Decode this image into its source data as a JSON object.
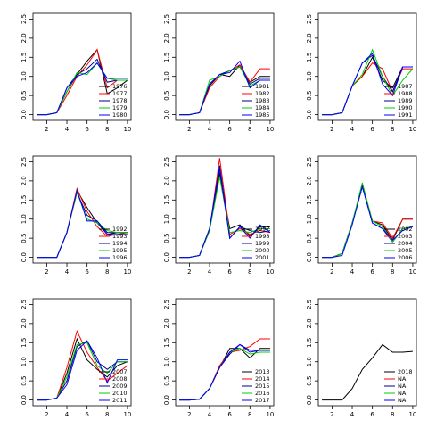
{
  "chart_data": [
    {
      "type": "line",
      "x": [
        1,
        2,
        3,
        4,
        5,
        6,
        7,
        8,
        9,
        10
      ],
      "xlim": [
        0.64,
        10.36
      ],
      "xticks": [
        2,
        4,
        6,
        8,
        10
      ],
      "ylim": [
        -0.15,
        2.65
      ],
      "yticks": [
        {
          "value": 0,
          "label": "0.0"
        },
        0.5,
        {
          "value": 1,
          "label": "1.0"
        },
        1.5,
        {
          "value": 2,
          "label": "2.0"
        },
        2.5
      ],
      "legend": "bottomright",
      "series": [
        {
          "name": "1976",
          "color": "#000000",
          "values": [
            0,
            0,
            0.05,
            0.6,
            1.05,
            1.4,
            1.7,
            0.55,
            0.7,
            0.9
          ]
        },
        {
          "name": "1977",
          "color": "#ff0000",
          "values": [
            0,
            0,
            0.05,
            0.5,
            1.0,
            1.3,
            1.7,
            0.7,
            0.9,
            0.9
          ]
        },
        {
          "name": "1978",
          "color": "#000080",
          "values": [
            0,
            0,
            0.05,
            0.7,
            1.05,
            1.2,
            1.45,
            0.85,
            0.9,
            0.9
          ]
        },
        {
          "name": "1979",
          "color": "#00cc00",
          "values": [
            0,
            0,
            0.05,
            0.6,
            1.1,
            1.05,
            1.35,
            0.95,
            0.9,
            0.9
          ]
        },
        {
          "name": "1980",
          "color": "#0000ff",
          "values": [
            0,
            0,
            0.05,
            0.7,
            1.0,
            1.1,
            1.35,
            0.95,
            0.95,
            0.95
          ]
        }
      ]
    },
    {
      "type": "line",
      "x": [
        1,
        2,
        3,
        4,
        5,
        6,
        7,
        8,
        9,
        10
      ],
      "xlim": [
        0.64,
        10.36
      ],
      "xticks": [
        2,
        4,
        6,
        8,
        10
      ],
      "ylim": [
        -0.15,
        2.65
      ],
      "yticks": [
        {
          "value": 0,
          "label": "0.0"
        },
        0.5,
        {
          "value": 1,
          "label": "1.0"
        },
        1.5,
        {
          "value": 2,
          "label": "2.0"
        },
        2.5
      ],
      "legend": "bottomright",
      "series": [
        {
          "name": "1981",
          "color": "#000000",
          "values": [
            0,
            0,
            0.05,
            0.75,
            1.05,
            1.0,
            1.3,
            0.85,
            1.0,
            1.0
          ]
        },
        {
          "name": "1982",
          "color": "#ff0000",
          "values": [
            0,
            0,
            0.05,
            0.7,
            1.0,
            1.15,
            1.3,
            0.85,
            1.2,
            1.2
          ]
        },
        {
          "name": "1983",
          "color": "#000080",
          "values": [
            0,
            0,
            0.05,
            0.8,
            1.05,
            1.15,
            1.25,
            0.8,
            0.95,
            0.95
          ]
        },
        {
          "name": "1984",
          "color": "#00cc00",
          "values": [
            0,
            0,
            0.05,
            0.9,
            1.0,
            1.15,
            1.25,
            0.75,
            0.9,
            0.9
          ]
        },
        {
          "name": "1985",
          "color": "#0000ff",
          "values": [
            0,
            0,
            0.05,
            0.8,
            1.05,
            1.1,
            1.4,
            0.7,
            0.9,
            0.9
          ]
        }
      ]
    },
    {
      "type": "line",
      "x": [
        1,
        2,
        3,
        4,
        5,
        6,
        7,
        8,
        9,
        10
      ],
      "xlim": [
        0.64,
        10.36
      ],
      "xticks": [
        2,
        4,
        6,
        8,
        10
      ],
      "ylim": [
        -0.15,
        2.65
      ],
      "yticks": [
        {
          "value": 0,
          "label": "0.0"
        },
        0.5,
        {
          "value": 1,
          "label": "1.0"
        },
        1.5,
        {
          "value": 2,
          "label": "2.0"
        },
        2.5
      ],
      "legend": "bottomright",
      "series": [
        {
          "name": "1987",
          "color": "#000000",
          "values": [
            0,
            0,
            0.05,
            0.75,
            1.0,
            1.5,
            0.9,
            0.7,
            1.25,
            1.25
          ]
        },
        {
          "name": "1988",
          "color": "#ff0000",
          "values": [
            0,
            0,
            0.05,
            0.75,
            1.0,
            1.35,
            1.2,
            0.6,
            1.2,
            1.2
          ]
        },
        {
          "name": "1989",
          "color": "#000080",
          "values": [
            0,
            0,
            0.05,
            0.75,
            1.35,
            1.55,
            1.0,
            0.6,
            1.25,
            1.25
          ]
        },
        {
          "name": "1990",
          "color": "#00cc00",
          "values": [
            0,
            0,
            0.05,
            0.75,
            1.05,
            1.7,
            1.0,
            0.5,
            0.9,
            1.2
          ]
        },
        {
          "name": "1991",
          "color": "#0000ff",
          "values": [
            0,
            0,
            0.05,
            0.75,
            1.35,
            1.6,
            0.8,
            0.5,
            1.25,
            1.25
          ]
        }
      ]
    },
    {
      "type": "line",
      "x": [
        1,
        2,
        3,
        4,
        5,
        6,
        7,
        8,
        9,
        10
      ],
      "xlim": [
        0.64,
        10.36
      ],
      "xticks": [
        2,
        4,
        6,
        8,
        10
      ],
      "ylim": [
        -0.15,
        2.65
      ],
      "yticks": [
        {
          "value": 0,
          "label": "0.0"
        },
        0.5,
        {
          "value": 1,
          "label": "1.0"
        },
        1.5,
        {
          "value": 2,
          "label": "2.0"
        },
        2.5
      ],
      "legend": "bottomright",
      "series": [
        {
          "name": "1992",
          "color": "#000000",
          "values": [
            0,
            0,
            0,
            0.65,
            1.75,
            1.3,
            0.9,
            0.6,
            0.65,
            0.65
          ]
        },
        {
          "name": "1993",
          "color": "#ff0000",
          "values": [
            0,
            0,
            0,
            0.65,
            1.8,
            1.2,
            0.8,
            0.55,
            0.6,
            0.65
          ]
        },
        {
          "name": "1994",
          "color": "#000080",
          "values": [
            0,
            0,
            0,
            0.65,
            1.7,
            1.1,
            0.95,
            0.65,
            0.65,
            0.65
          ]
        },
        {
          "name": "1995",
          "color": "#00cc00",
          "values": [
            0,
            0,
            0,
            0.65,
            1.7,
            1.0,
            0.9,
            0.7,
            0.65,
            0.65
          ]
        },
        {
          "name": "1996",
          "color": "#0000ff",
          "values": [
            0,
            0,
            0,
            0.65,
            1.75,
            0.95,
            0.95,
            0.6,
            0.6,
            0.6
          ]
        }
      ]
    },
    {
      "type": "line",
      "x": [
        1,
        2,
        3,
        4,
        5,
        6,
        7,
        8,
        9,
        10
      ],
      "xlim": [
        0.64,
        10.36
      ],
      "xticks": [
        2,
        4,
        6,
        8,
        10
      ],
      "ylim": [
        -0.15,
        2.65
      ],
      "yticks": [
        {
          "value": 0,
          "label": "0.0"
        },
        0.5,
        {
          "value": 1,
          "label": "1.0"
        },
        1.5,
        {
          "value": 2,
          "label": "2.0"
        },
        2.5
      ],
      "legend": "bottomright",
      "series": [
        {
          "name": "1997",
          "color": "#000000",
          "values": [
            0,
            0,
            0.05,
            0.75,
            2.2,
            0.75,
            0.85,
            0.55,
            0.8,
            0.8
          ]
        },
        {
          "name": "1998",
          "color": "#ff0000",
          "values": [
            0,
            0,
            0.05,
            0.7,
            2.6,
            0.6,
            0.75,
            0.6,
            0.7,
            0.65
          ]
        },
        {
          "name": "1999",
          "color": "#000080",
          "values": [
            0,
            0,
            0.05,
            0.75,
            2.4,
            0.5,
            0.8,
            0.7,
            0.65,
            0.7
          ]
        },
        {
          "name": "2000",
          "color": "#00cc00",
          "values": [
            0,
            0,
            0.05,
            0.7,
            2.1,
            0.65,
            0.7,
            0.65,
            0.75,
            0.75
          ]
        },
        {
          "name": "2001",
          "color": "#0000ff",
          "values": [
            0,
            0,
            0.05,
            0.75,
            2.3,
            0.5,
            0.8,
            0.5,
            0.85,
            0.65
          ]
        }
      ]
    },
    {
      "type": "line",
      "x": [
        1,
        2,
        3,
        4,
        5,
        6,
        7,
        8,
        9,
        10
      ],
      "xlim": [
        0.64,
        10.36
      ],
      "xticks": [
        2,
        4,
        6,
        8,
        10
      ],
      "ylim": [
        -0.15,
        2.65
      ],
      "yticks": [
        {
          "value": 0,
          "label": "0.0"
        },
        0.5,
        {
          "value": 1,
          "label": "1.0"
        },
        1.5,
        {
          "value": 2,
          "label": "2.0"
        },
        2.5
      ],
      "legend": "bottomright",
      "series": [
        {
          "name": "2002",
          "color": "#000000",
          "values": [
            0,
            0,
            0.1,
            0.9,
            1.85,
            0.95,
            0.85,
            0.45,
            1.0,
            1.0
          ]
        },
        {
          "name": "2003",
          "color": "#ff0000",
          "values": [
            0,
            0,
            0.1,
            0.9,
            1.9,
            0.95,
            0.9,
            0.5,
            1.0,
            1.0
          ]
        },
        {
          "name": "2004",
          "color": "#000080",
          "values": [
            0,
            0,
            0.1,
            0.9,
            1.85,
            0.9,
            0.75,
            0.4,
            0.75,
            0.8
          ]
        },
        {
          "name": "2005",
          "color": "#00cc00",
          "values": [
            0,
            0,
            0.1,
            0.9,
            1.95,
            0.95,
            0.8,
            0.4,
            0.75,
            0.8
          ]
        },
        {
          "name": "2006",
          "color": "#0000ff",
          "values": [
            0,
            0,
            0.05,
            0.85,
            1.85,
            0.9,
            0.75,
            0.45,
            0.7,
            0.8
          ]
        }
      ]
    },
    {
      "type": "line",
      "x": [
        1,
        2,
        3,
        4,
        5,
        6,
        7,
        8,
        9,
        10
      ],
      "xlim": [
        0.64,
        10.36
      ],
      "xticks": [
        2,
        4,
        6,
        8,
        10
      ],
      "ylim": [
        -0.15,
        2.65
      ],
      "yticks": [
        {
          "value": 0,
          "label": "0.0"
        },
        0.5,
        {
          "value": 1,
          "label": "1.0"
        },
        1.5,
        {
          "value": 2,
          "label": "2.0"
        },
        2.5
      ],
      "legend": "bottomright",
      "series": [
        {
          "name": "2007",
          "color": "#000000",
          "values": [
            0,
            0,
            0.05,
            0.7,
            1.6,
            1.05,
            0.8,
            0.6,
            0.9,
            1.0
          ]
        },
        {
          "name": "2008",
          "color": "#ff0000",
          "values": [
            0,
            0,
            0.05,
            0.85,
            1.8,
            1.25,
            0.85,
            0.5,
            0.7,
            0.9
          ]
        },
        {
          "name": "2009",
          "color": "#000080",
          "values": [
            0,
            0,
            0.05,
            0.5,
            1.4,
            1.55,
            1.0,
            0.8,
            1.0,
            1.0
          ]
        },
        {
          "name": "2010",
          "color": "#00cc00",
          "values": [
            0,
            0,
            0.05,
            0.6,
            1.45,
            1.5,
            0.9,
            0.7,
            1.0,
            1.0
          ]
        },
        {
          "name": "2011",
          "color": "#0000ff",
          "values": [
            0,
            0,
            0.05,
            0.4,
            1.3,
            1.55,
            1.1,
            0.45,
            1.05,
            1.05
          ]
        }
      ]
    },
    {
      "type": "line",
      "x": [
        1,
        2,
        3,
        4,
        5,
        6,
        7,
        8,
        9,
        10
      ],
      "xlim": [
        0.64,
        10.36
      ],
      "xticks": [
        2,
        4,
        6,
        8,
        10
      ],
      "ylim": [
        -0.15,
        2.65
      ],
      "yticks": [
        {
          "value": 0,
          "label": "0.0"
        },
        0.5,
        {
          "value": 1,
          "label": "1.0"
        },
        1.5,
        {
          "value": 2,
          "label": "2.0"
        },
        2.5
      ],
      "legend": "bottomright",
      "series": [
        {
          "name": "2013",
          "color": "#000000",
          "values": [
            0,
            0,
            0.02,
            0.3,
            0.85,
            1.35,
            1.35,
            1.1,
            1.35,
            1.35
          ]
        },
        {
          "name": "2014",
          "color": "#ff0000",
          "values": [
            0,
            0,
            0.02,
            0.3,
            0.9,
            1.25,
            1.3,
            1.4,
            1.6,
            1.6
          ]
        },
        {
          "name": "2015",
          "color": "#000080",
          "values": [
            0,
            0,
            0.02,
            0.3,
            0.85,
            1.2,
            1.45,
            1.3,
            1.3,
            1.3
          ]
        },
        {
          "name": "2016",
          "color": "#00cc00",
          "values": [
            0,
            0,
            0.02,
            0.3,
            0.85,
            1.25,
            1.35,
            1.2,
            1.25,
            1.25
          ]
        },
        {
          "name": "2017",
          "color": "#0000ff",
          "values": [
            0,
            0,
            0.02,
            0.3,
            0.85,
            1.25,
            1.45,
            1.25,
            1.3,
            1.3
          ]
        }
      ]
    },
    {
      "type": "line",
      "x": [
        1,
        2,
        3,
        4,
        5,
        6,
        7,
        8,
        9,
        10
      ],
      "xlim": [
        0.64,
        10.36
      ],
      "xticks": [
        2,
        4,
        6,
        8,
        10
      ],
      "ylim": [
        -0.15,
        2.65
      ],
      "yticks": [
        {
          "value": 0,
          "label": "0.0"
        },
        0.5,
        {
          "value": 1,
          "label": "1.0"
        },
        1.5,
        {
          "value": 2,
          "label": "2.0"
        },
        2.5
      ],
      "legend": "bottomright",
      "series": [
        {
          "name": "2018",
          "color": "#000000",
          "values": [
            0,
            0,
            0,
            0.3,
            0.8,
            1.1,
            1.45,
            1.25,
            1.25,
            1.27
          ]
        },
        {
          "name": "NA",
          "color": "#ff0000",
          "values": [
            null,
            null,
            null,
            null,
            null,
            null,
            null,
            null,
            null,
            null
          ]
        },
        {
          "name": "NA",
          "color": "#000080",
          "values": [
            null,
            null,
            null,
            null,
            null,
            null,
            null,
            null,
            null,
            null
          ]
        },
        {
          "name": "NA",
          "color": "#00cc00",
          "values": [
            null,
            null,
            null,
            null,
            null,
            null,
            null,
            null,
            null,
            null
          ]
        },
        {
          "name": "NA",
          "color": "#0000ff",
          "values": [
            null,
            null,
            null,
            null,
            null,
            null,
            null,
            null,
            null,
            null
          ]
        }
      ]
    }
  ]
}
